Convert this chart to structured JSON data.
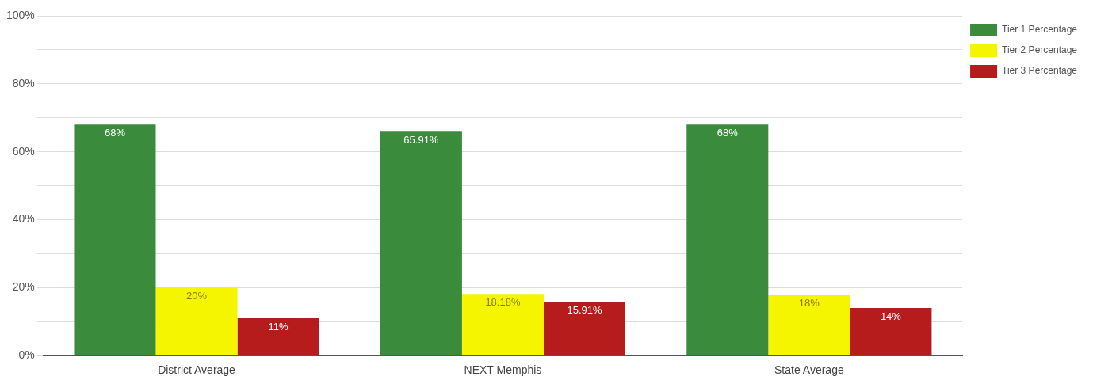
{
  "chart_data": {
    "type": "bar",
    "categories": [
      "District Average",
      "NEXT Memphis",
      "State Average"
    ],
    "series": [
      {
        "name": "Tier 1 Percentage",
        "color": "#3a8c3c",
        "values": [
          68,
          65.91,
          68
        ],
        "value_labels": [
          "68%",
          "65.91%",
          "68%"
        ]
      },
      {
        "name": "Tier 2 Percentage",
        "color": "#f5f500",
        "values": [
          20,
          18.18,
          18
        ],
        "value_labels": [
          "20%",
          "18.18%",
          "18%"
        ]
      },
      {
        "name": "Tier 3 Percentage",
        "color": "#b71c1c",
        "values": [
          11,
          15.91,
          14
        ],
        "value_labels": [
          "11%",
          "15.91%",
          "14%"
        ]
      }
    ],
    "ylim": [
      0,
      100
    ],
    "yticks": [
      {
        "value": 0,
        "label": "0%"
      },
      {
        "value": 10,
        "label": null
      },
      {
        "value": 20,
        "label": "20%"
      },
      {
        "value": 30,
        "label": null
      },
      {
        "value": 40,
        "label": "40%"
      },
      {
        "value": 50,
        "label": null
      },
      {
        "value": 60,
        "label": "60%"
      },
      {
        "value": 70,
        "label": null
      },
      {
        "value": 80,
        "label": "80%"
      },
      {
        "value": 90,
        "label": null
      },
      {
        "value": 100,
        "label": "100%"
      }
    ],
    "grid": "y",
    "legend": "top right"
  }
}
